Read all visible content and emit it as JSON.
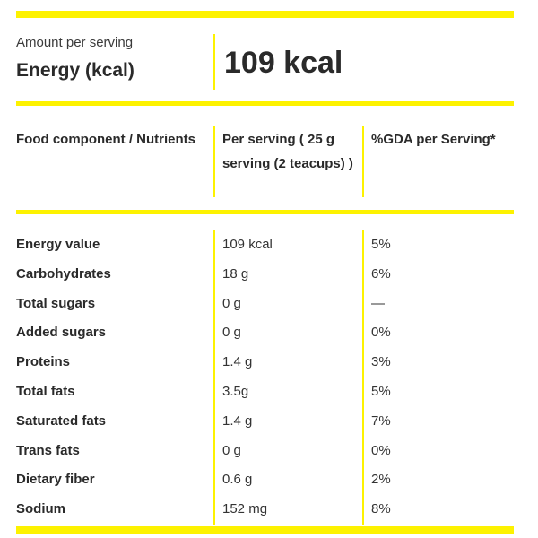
{
  "colors": {
    "accent_yellow": "#fdf200",
    "text": "#2b2b2b"
  },
  "summary": {
    "amount_label": "Amount per serving",
    "energy_label": "Energy (kcal)",
    "energy_value": "109 kcal"
  },
  "table": {
    "headers": {
      "component": "Food component / Nutrients",
      "per_serving": "Per serving ( 25 g serving (2 teacups) )",
      "gda": "%GDA per Serving*"
    },
    "rows": [
      {
        "name": "Energy value",
        "per_serving": "109 kcal",
        "gda": "5%"
      },
      {
        "name": "Carbohydrates",
        "per_serving": "18 g",
        "gda": "6%"
      },
      {
        "name": "Total sugars",
        "per_serving": "0 g",
        "gda": "—"
      },
      {
        "name": "Added sugars",
        "per_serving": "0 g",
        "gda": "0%"
      },
      {
        "name": "Proteins",
        "per_serving": "1.4 g",
        "gda": "3%"
      },
      {
        "name": "Total fats",
        "per_serving": "3.5g",
        "gda": "5%"
      },
      {
        "name": "Saturated fats",
        "per_serving": "1.4 g",
        "gda": "7%"
      },
      {
        "name": "Trans fats",
        "per_serving": "0 g",
        "gda": "0%"
      },
      {
        "name": "Dietary fiber",
        "per_serving": "0.6 g",
        "gda": "2%"
      },
      {
        "name": "Sodium",
        "per_serving": "152 mg",
        "gda": "8%"
      }
    ]
  }
}
